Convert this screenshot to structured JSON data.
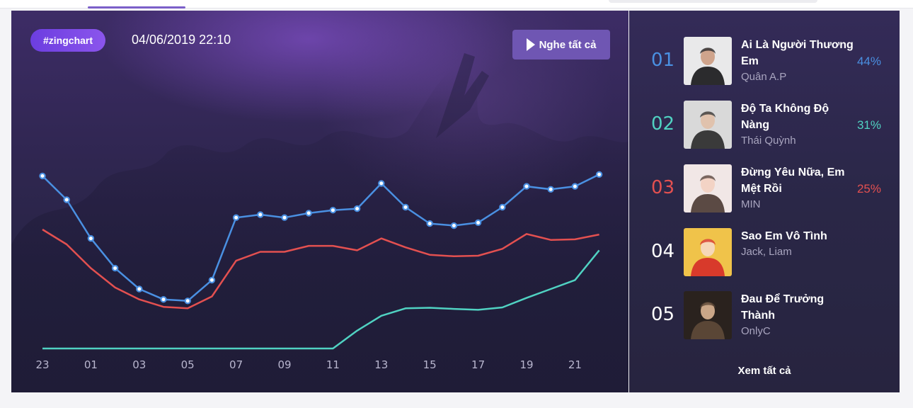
{
  "colors": {
    "rank1": "#4a90e2",
    "rank2": "#50d2c2",
    "rank3": "#e35050",
    "neutral": "#ffffff",
    "badge": "#7b4ae6"
  },
  "header": {
    "badge": "#zingchart",
    "timestamp": "04/06/2019 22:10",
    "play_all_label": "Nghe tất cả",
    "play_icon": "play-icon"
  },
  "chart_data": {
    "type": "line",
    "x": [
      "23",
      "00",
      "01",
      "02",
      "03",
      "04",
      "05",
      "06",
      "07",
      "08",
      "09",
      "10",
      "11",
      "12",
      "13",
      "14",
      "15",
      "16",
      "17",
      "18",
      "19",
      "20",
      "21",
      "22"
    ],
    "tick_labels": [
      "23",
      "01",
      "03",
      "05",
      "07",
      "09",
      "11",
      "13",
      "15",
      "17",
      "19",
      "21"
    ],
    "series": [
      {
        "color": "#4a90e2",
        "markers": true,
        "values": [
          58,
          50,
          37,
          27,
          20,
          16.5,
          16,
          23,
          44,
          45,
          44,
          45.5,
          46.5,
          47,
          55.5,
          47.5,
          42,
          41.3,
          42.3,
          47.5,
          54.5,
          53.5,
          54.5,
          58.5
        ]
      },
      {
        "color": "#e35050",
        "markers": false,
        "values": [
          40,
          35,
          27,
          20.5,
          16.5,
          14,
          13.5,
          17.5,
          29.5,
          32.5,
          32.5,
          34.5,
          34.5,
          33,
          37,
          34,
          31.5,
          31,
          31.2,
          33.5,
          38.5,
          36.5,
          36.7,
          38.3
        ]
      },
      {
        "color": "#50d2c2",
        "markers": false,
        "values": [
          0,
          0,
          0,
          0,
          0,
          0,
          0,
          0,
          0,
          0,
          0,
          0,
          0,
          6,
          11,
          13.5,
          13.7,
          13.3,
          13,
          13.8,
          17,
          20,
          23,
          33
        ]
      }
    ],
    "ylim": [
      0,
      73
    ],
    "grid": false,
    "legend": "none"
  },
  "ranking": {
    "items": [
      {
        "rank": "01",
        "title": "Ai Là Người Thương Em",
        "artist": "Quân A.P",
        "percent": "44%",
        "color": "#4a90e2",
        "thumb": [
          "#e9e9ea",
          "#2b2b2d",
          "#cfa48c"
        ]
      },
      {
        "rank": "02",
        "title": "Độ Ta Không Độ Nàng",
        "artist": "Thái Quỳnh",
        "percent": "31%",
        "color": "#50d2c2",
        "thumb": [
          "#d9d9d9",
          "#3a3a3a",
          "#e0c2ad"
        ]
      },
      {
        "rank": "03",
        "title": "Đừng Yêu Nữa, Em Mệt Rồi",
        "artist": "MIN",
        "percent": "25%",
        "color": "#e35050",
        "thumb": [
          "#f1e7e6",
          "#5b4a44",
          "#f3d3c5"
        ]
      },
      {
        "rank": "04",
        "title": "Sao Em Vô Tình",
        "artist": "Jack, Liam",
        "percent": "",
        "color": "#ffffff",
        "thumb": [
          "#f0c34a",
          "#d83a2b",
          "#f6d7b9"
        ]
      },
      {
        "rank": "05",
        "title": "Đau Để Trưởng Thành",
        "artist": "OnlyC",
        "percent": "",
        "color": "#ffffff",
        "thumb": [
          "#2a221e",
          "#5a4636",
          "#caa688"
        ]
      }
    ],
    "see_all": "Xem tất cả"
  }
}
